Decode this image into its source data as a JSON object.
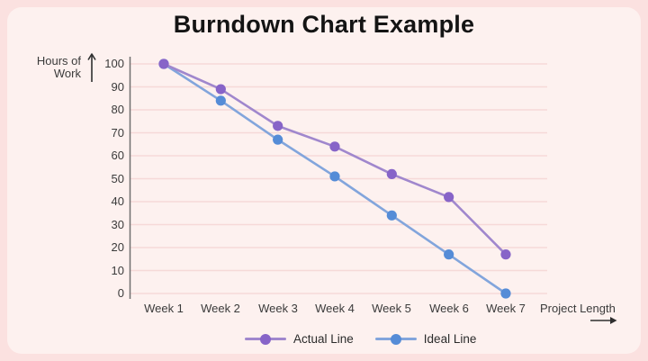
{
  "palette": {
    "page_background": "#fbe1e0",
    "card_background": "#fdf1ef",
    "gridline": "#f6d9d8",
    "axis": "#6f6f6f",
    "title_text": "#141414",
    "label_text": "#3b3b3b"
  },
  "chart_data": {
    "type": "line",
    "title": "Burndown Chart Example",
    "ylabel": "Hours of Work",
    "xlabel": "Project Length",
    "categories": [
      "Week 1",
      "Week 2",
      "Week 3",
      "Week 4",
      "Week 5",
      "Week 6",
      "Week 7"
    ],
    "yticks": [
      100,
      90,
      80,
      70,
      60,
      50,
      40,
      30,
      20,
      10,
      0
    ],
    "ylim": [
      0,
      100
    ],
    "grid": "horizontal",
    "legend_position": "bottom",
    "series": [
      {
        "name": "Actual Line",
        "line_color": "#a087cd",
        "marker_color": "#8764c8",
        "values": [
          100,
          89,
          73,
          64,
          52,
          42,
          17
        ]
      },
      {
        "name": "Ideal Line",
        "line_color": "#82a5dc",
        "marker_color": "#558cd7",
        "values": [
          100,
          84,
          67,
          51,
          34,
          17,
          0
        ]
      }
    ]
  }
}
